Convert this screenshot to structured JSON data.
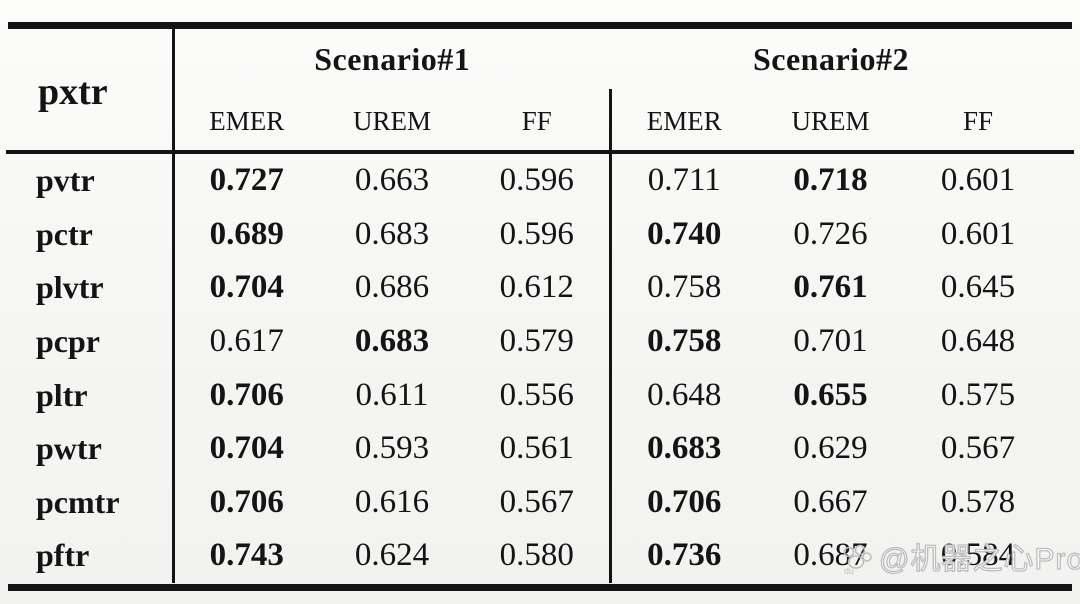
{
  "table": {
    "corner_label": "pxtr",
    "groups": [
      {
        "label": "Scenario#1",
        "columns": [
          "EMER",
          "UREM",
          "FF"
        ]
      },
      {
        "label": "Scenario#2",
        "columns": [
          "EMER",
          "UREM",
          "FF"
        ]
      }
    ],
    "rows": [
      {
        "label": "pvtr",
        "values": [
          {
            "v": "0.727",
            "bold": true
          },
          {
            "v": "0.663",
            "bold": false
          },
          {
            "v": "0.596",
            "bold": false
          },
          {
            "v": "0.711",
            "bold": false
          },
          {
            "v": "0.718",
            "bold": true
          },
          {
            "v": "0.601",
            "bold": false
          }
        ]
      },
      {
        "label": "pctr",
        "values": [
          {
            "v": "0.689",
            "bold": true
          },
          {
            "v": "0.683",
            "bold": false
          },
          {
            "v": "0.596",
            "bold": false
          },
          {
            "v": "0.740",
            "bold": true
          },
          {
            "v": "0.726",
            "bold": false
          },
          {
            "v": "0.601",
            "bold": false
          }
        ]
      },
      {
        "label": "plvtr",
        "values": [
          {
            "v": "0.704",
            "bold": true
          },
          {
            "v": "0.686",
            "bold": false
          },
          {
            "v": "0.612",
            "bold": false
          },
          {
            "v": "0.758",
            "bold": false
          },
          {
            "v": "0.761",
            "bold": true
          },
          {
            "v": "0.645",
            "bold": false
          }
        ]
      },
      {
        "label": "pcpr",
        "values": [
          {
            "v": "0.617",
            "bold": false
          },
          {
            "v": "0.683",
            "bold": true
          },
          {
            "v": "0.579",
            "bold": false
          },
          {
            "v": "0.758",
            "bold": true
          },
          {
            "v": "0.701",
            "bold": false
          },
          {
            "v": "0.648",
            "bold": false
          }
        ]
      },
      {
        "label": "pltr",
        "values": [
          {
            "v": "0.706",
            "bold": true
          },
          {
            "v": "0.611",
            "bold": false
          },
          {
            "v": "0.556",
            "bold": false
          },
          {
            "v": "0.648",
            "bold": false
          },
          {
            "v": "0.655",
            "bold": true
          },
          {
            "v": "0.575",
            "bold": false
          }
        ]
      },
      {
        "label": "pwtr",
        "values": [
          {
            "v": "0.704",
            "bold": true
          },
          {
            "v": "0.593",
            "bold": false
          },
          {
            "v": "0.561",
            "bold": false
          },
          {
            "v": "0.683",
            "bold": true
          },
          {
            "v": "0.629",
            "bold": false
          },
          {
            "v": "0.567",
            "bold": false
          }
        ]
      },
      {
        "label": "pcmtr",
        "values": [
          {
            "v": "0.706",
            "bold": true
          },
          {
            "v": "0.616",
            "bold": false
          },
          {
            "v": "0.567",
            "bold": false
          },
          {
            "v": "0.706",
            "bold": true
          },
          {
            "v": "0.667",
            "bold": false
          },
          {
            "v": "0.578",
            "bold": false
          }
        ]
      },
      {
        "label": "pftr",
        "values": [
          {
            "v": "0.743",
            "bold": true
          },
          {
            "v": "0.624",
            "bold": false
          },
          {
            "v": "0.580",
            "bold": false
          },
          {
            "v": "0.736",
            "bold": true
          },
          {
            "v": "0.687",
            "bold": false
          },
          {
            "v": "0.584",
            "bold": false
          }
        ]
      }
    ]
  },
  "watermark": {
    "text": "@机器之心Pro",
    "icon_label": "du"
  },
  "colors": {
    "ink": "#141414",
    "background": "#f7f7f5",
    "watermark": "#bdbdbd"
  }
}
